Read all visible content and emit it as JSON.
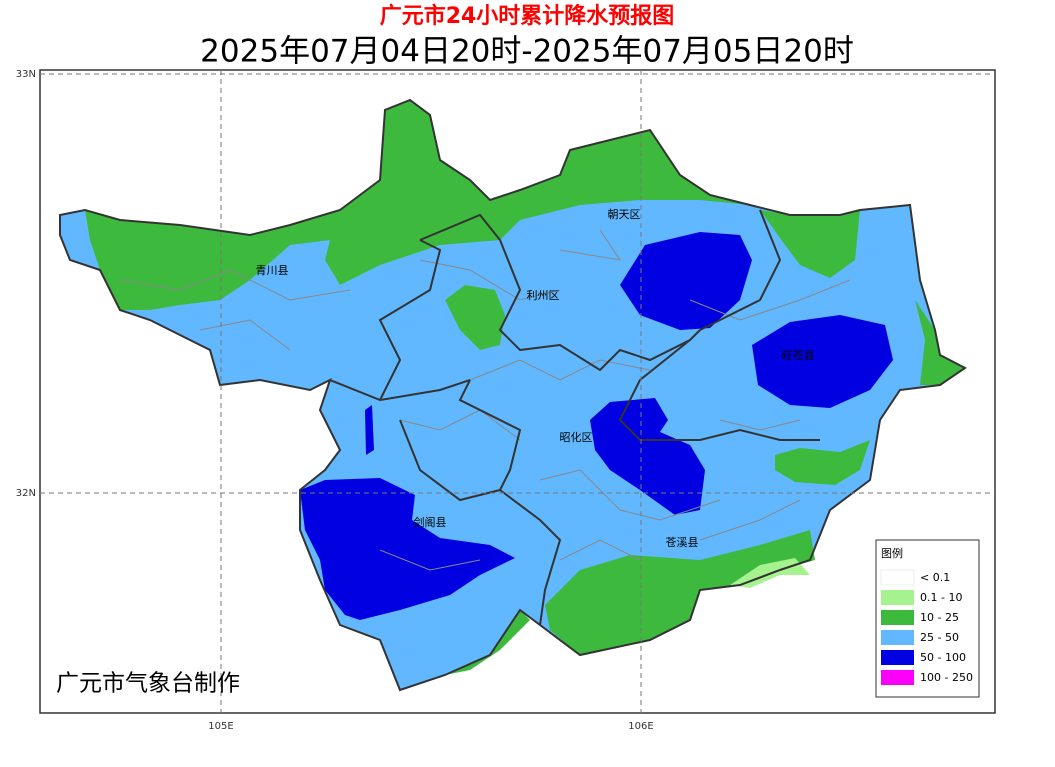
{
  "header": {
    "title": "广元市24小时累计降水预报图",
    "subtitle": "2025年07月04日20时-2025年07月05日20时"
  },
  "axes": {
    "lat": [
      "33N",
      "32N"
    ],
    "lon": [
      "105E",
      "106E"
    ]
  },
  "places": [
    "青川县",
    "朝天区",
    "利州区",
    "旺苍县",
    "昭化区",
    "剑阁县",
    "苍溪县"
  ],
  "legend": {
    "title": "图例",
    "items": [
      {
        "label": "< 0.1",
        "color": "#ffffff"
      },
      {
        "label": "0.1 - 10",
        "color": "#a6f28f"
      },
      {
        "label": "10 - 25",
        "color": "#3dba3d"
      },
      {
        "label": "25 - 50",
        "color": "#61b8ff"
      },
      {
        "label": "50 - 100",
        "color": "#0000e1"
      },
      {
        "label": "100 - 250",
        "color": "#fa00fa"
      }
    ]
  },
  "credit": "广元市气象台制作"
}
